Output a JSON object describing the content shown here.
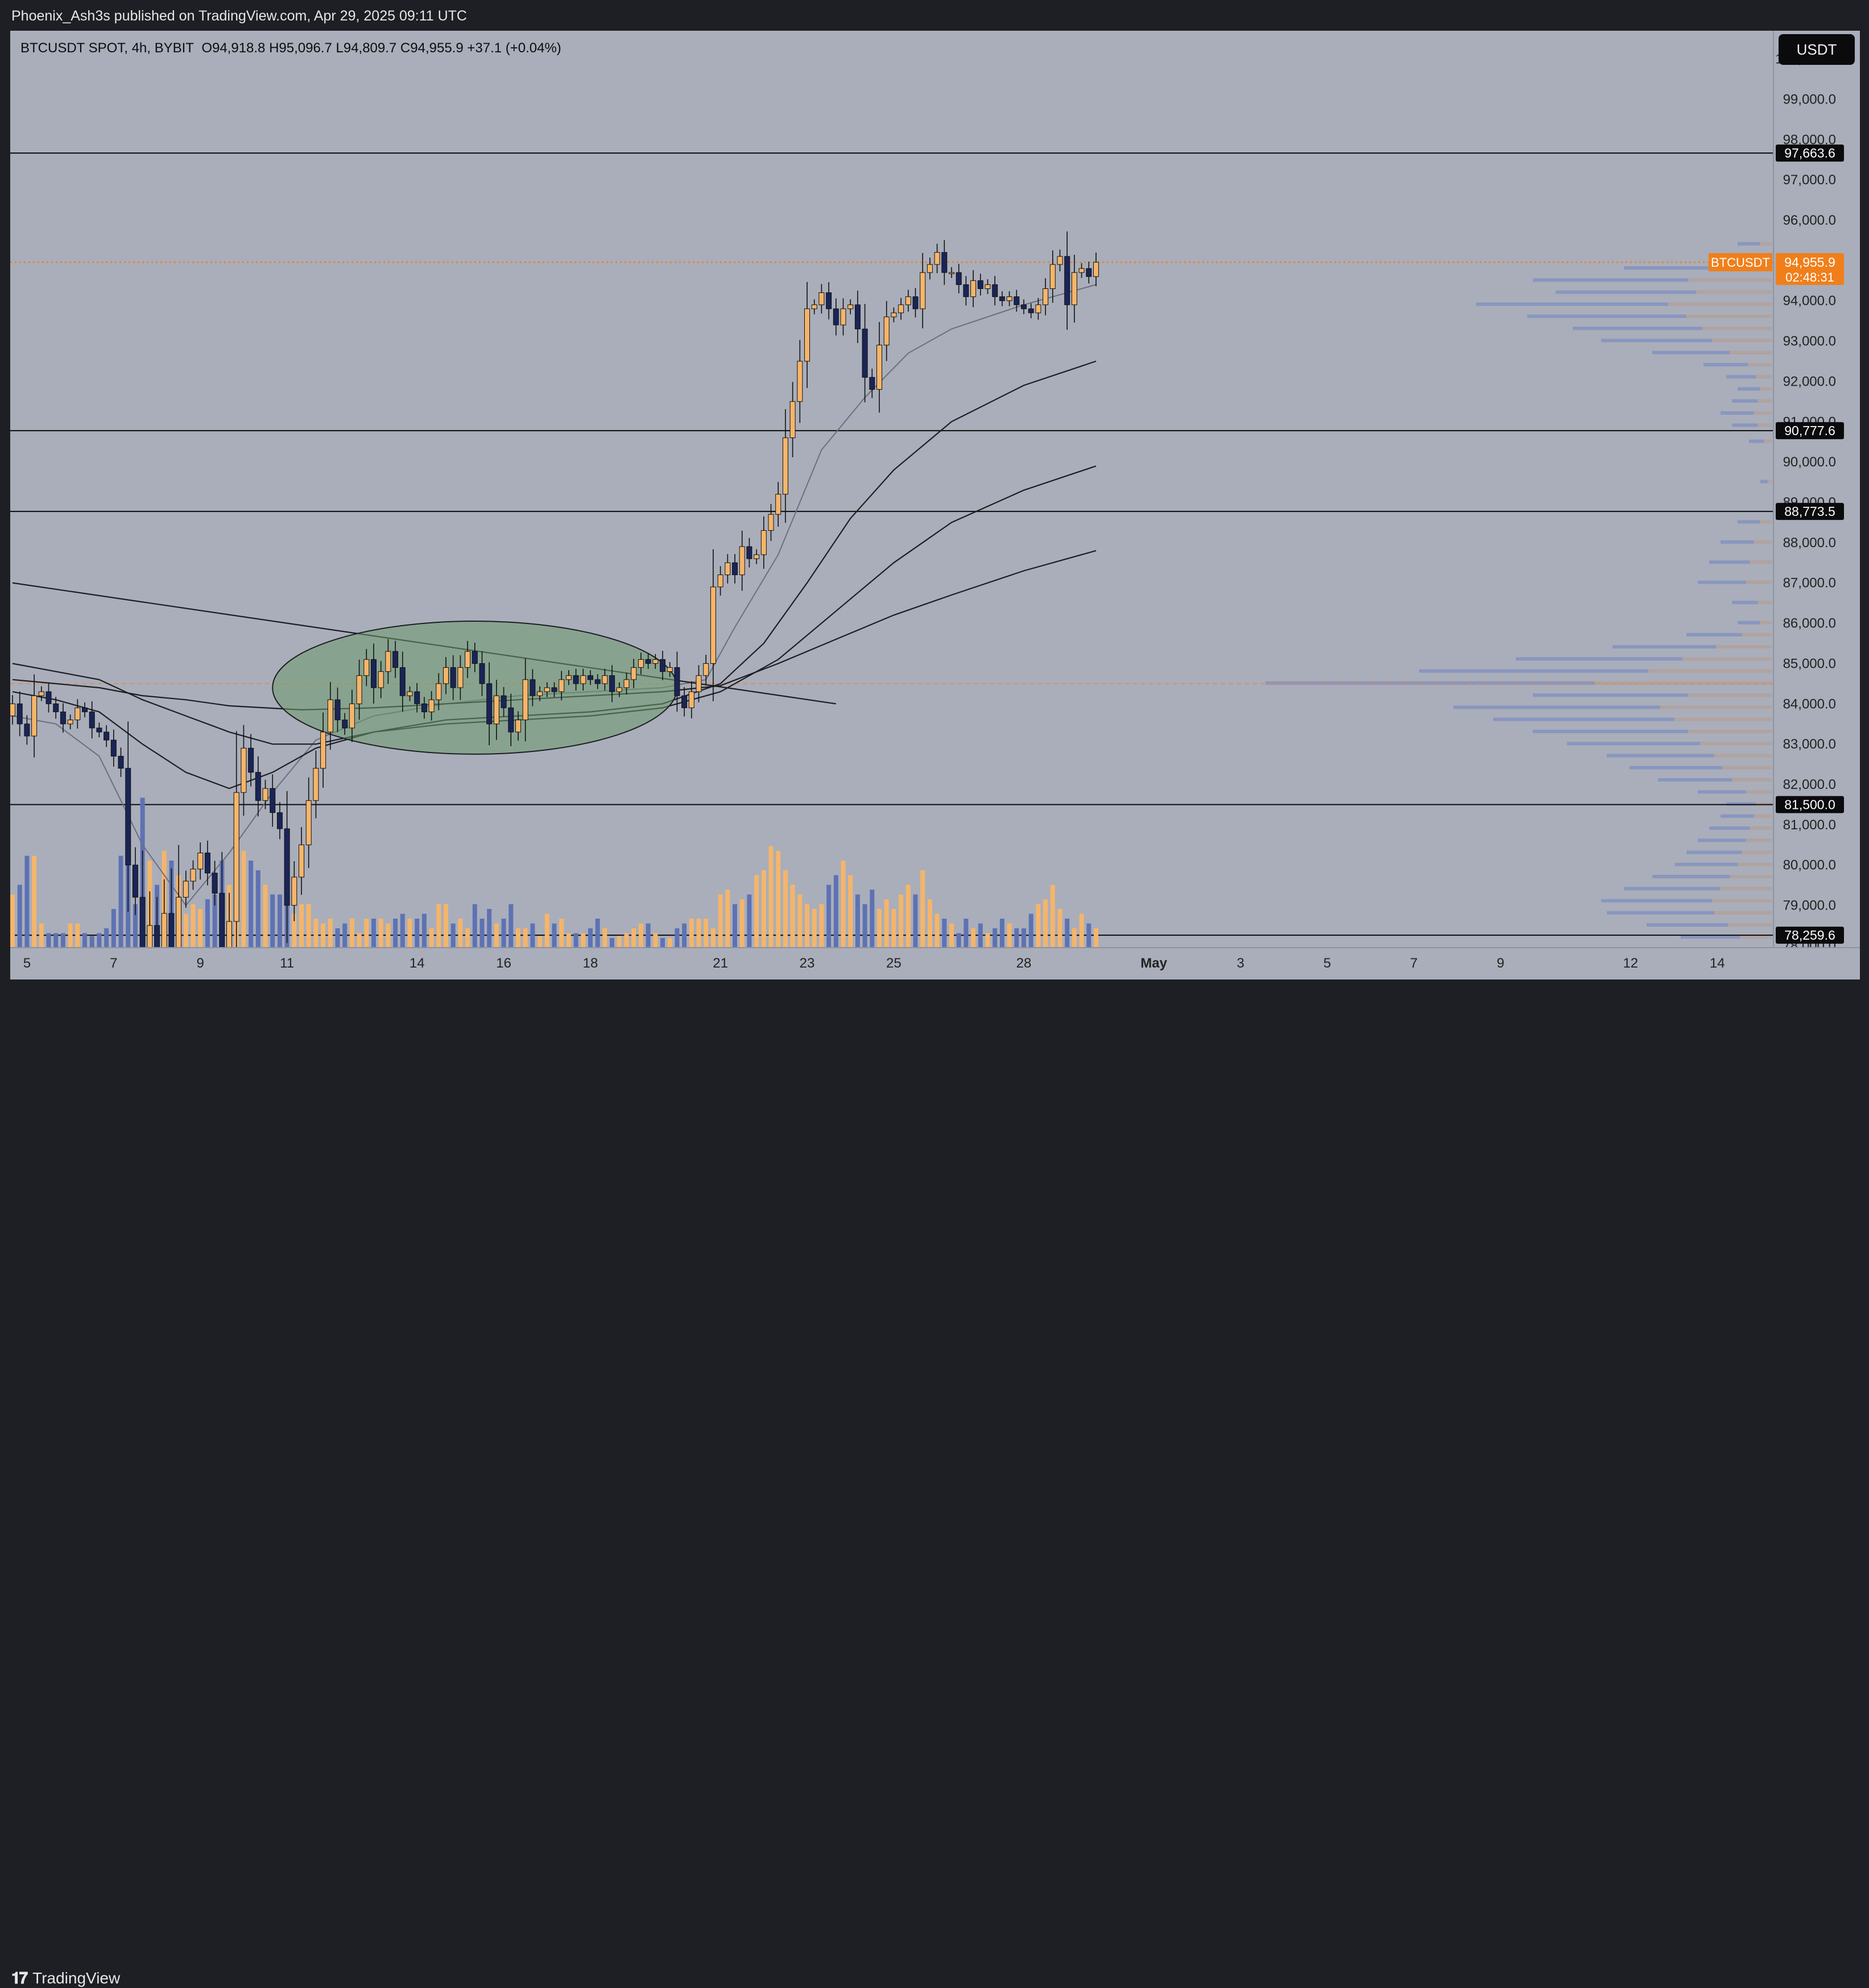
{
  "header": {
    "published": "Phoenix_Ash3s published on TradingView.com, Apr 29, 2025 09:11 UTC"
  },
  "legend": {
    "symbol": "BTCUSDT SPOT, 4h, BYBIT",
    "ohlc": "O94,918.8  H95,096.7  L94,809.7  C94,955.9  +37.1 (+0.04%)"
  },
  "currency_button": "USDT",
  "footer": {
    "brand": "TradingView",
    "logo": "TV logo"
  },
  "colors": {
    "background": "#a9aeba",
    "up_candle": "#f5b56a",
    "down_candle": "#1a2456",
    "volume_up": "#f5b56a",
    "volume_down": "#5e72b3",
    "price_line": "#f07f1b",
    "highlight_ellipse": "#6b9b6b"
  },
  "chart_data": {
    "type": "candlestick",
    "symbol": "BTCUSDT",
    "timeframe": "4h",
    "exchange": "BYBIT",
    "last_price": {
      "label": "BTCUSDT",
      "value": "94,955.9",
      "countdown": "02:48:31"
    },
    "ylim": [
      77950,
      100700
    ],
    "y_ticks": [
      78000,
      79000,
      80000,
      81000,
      82000,
      83000,
      84000,
      85000,
      86000,
      87000,
      88000,
      89000,
      90000,
      91000,
      92000,
      93000,
      94000,
      95000,
      96000,
      97000,
      98000,
      99000,
      100000
    ],
    "x_ticks": [
      {
        "label": "5",
        "t": 2
      },
      {
        "label": "7",
        "t": 14
      },
      {
        "label": "9",
        "t": 26
      },
      {
        "label": "11",
        "t": 38
      },
      {
        "label": "14",
        "t": 56
      },
      {
        "label": "16",
        "t": 68
      },
      {
        "label": "18",
        "t": 80
      },
      {
        "label": "21",
        "t": 98
      },
      {
        "label": "23",
        "t": 110
      },
      {
        "label": "25",
        "t": 122
      },
      {
        "label": "28",
        "t": 140
      },
      {
        "label": "May",
        "t": 158
      },
      {
        "label": "3",
        "t": 170
      },
      {
        "label": "5",
        "t": 182
      },
      {
        "label": "7",
        "t": 194
      },
      {
        "label": "9",
        "t": 206
      },
      {
        "label": "12",
        "t": 224
      },
      {
        "label": "14",
        "t": 236
      }
    ],
    "horizontal_levels": [
      97663.6,
      90777.6,
      88773.5,
      81500.0,
      78259.6
    ],
    "horizontal_level_labels": [
      "97,663.6",
      "90,777.6",
      "88,773.5",
      "81,500.0",
      "78,259.6"
    ],
    "dashed_level": 84500,
    "candles_close": [
      84000,
      83500,
      83200,
      84200,
      84300,
      84000,
      83800,
      83500,
      83600,
      83900,
      83800,
      83400,
      83300,
      83100,
      82700,
      82400,
      80000,
      79200,
      76800,
      78500,
      77100,
      78800,
      76500,
      79200,
      79600,
      79900,
      80300,
      79800,
      79300,
      77200,
      78600,
      81800,
      82900,
      82300,
      81600,
      81900,
      81300,
      80900,
      79000,
      79700,
      80500,
      81600,
      82400,
      83300,
      84100,
      83600,
      83400,
      84000,
      84700,
      85100,
      84400,
      84800,
      85300,
      84900,
      84200,
      84300,
      84000,
      83800,
      84100,
      84500,
      84900,
      84400,
      84900,
      85300,
      85000,
      84500,
      83500,
      84200,
      83900,
      83300,
      83600,
      84600,
      84200,
      84300,
      84400,
      84300,
      84600,
      84700,
      84500,
      84700,
      84600,
      84500,
      84700,
      84300,
      84400,
      84600,
      84900,
      85100,
      85000,
      85100,
      84800,
      84900,
      84200,
      83900,
      84300,
      84700,
      85000,
      86900,
      87200,
      87500,
      87200,
      87900,
      87600,
      87700,
      88300,
      88700,
      89200,
      90600,
      91500,
      92500,
      93800,
      93900,
      94200,
      93800,
      93400,
      93800,
      93900,
      93300,
      92100,
      91800,
      92900,
      93600,
      93700,
      93900,
      94100,
      93800,
      94700,
      94900,
      95200,
      94700,
      94700,
      94400,
      94100,
      94500,
      94300,
      94400,
      94100,
      94000,
      94100,
      93900,
      93800,
      93700,
      93900,
      94300,
      94900,
      95100,
      93900,
      94700,
      94800,
      94600,
      94955.9
    ],
    "volume_relative": [
      0.55,
      0.65,
      0.95,
      0.95,
      0.25,
      0.15,
      0.15,
      0.15,
      0.25,
      0.25,
      0.15,
      0.12,
      0.15,
      0.2,
      0.4,
      0.95,
      1.15,
      0.45,
      1.55,
      0.9,
      0.65,
      1.0,
      0.9,
      0.75,
      0.35,
      0.45,
      0.4,
      0.5,
      0.55,
      0.9,
      0.65,
      1.0,
      1.0,
      0.9,
      0.8,
      0.65,
      0.55,
      0.55,
      0.9,
      0.35,
      0.45,
      0.45,
      0.3,
      0.25,
      0.3,
      0.2,
      0.25,
      0.3,
      0.15,
      0.3,
      0.3,
      0.3,
      0.25,
      0.3,
      0.35,
      0.3,
      0.3,
      0.35,
      0.2,
      0.45,
      0.45,
      0.25,
      0.3,
      0.2,
      0.45,
      0.3,
      0.4,
      0.25,
      0.3,
      0.45,
      0.2,
      0.2,
      0.25,
      0.12,
      0.35,
      0.25,
      0.3,
      0.15,
      0.15,
      0.15,
      0.2,
      0.3,
      0.2,
      0.1,
      0.12,
      0.15,
      0.2,
      0.25,
      0.25,
      0.15,
      0.1,
      0.1,
      0.2,
      0.25,
      0.3,
      0.3,
      0.3,
      0.2,
      0.55,
      0.6,
      0.45,
      0.5,
      0.55,
      0.75,
      0.8,
      1.05,
      1.0,
      0.8,
      0.65,
      0.55,
      0.45,
      0.4,
      0.45,
      0.65,
      0.75,
      0.9,
      0.75,
      0.55,
      0.45,
      0.6,
      0.4,
      0.5,
      0.4,
      0.55,
      0.65,
      0.55,
      0.8,
      0.5,
      0.35,
      0.3,
      0.25,
      0.15,
      0.3,
      0.2,
      0.25,
      0.15,
      0.2,
      0.3,
      0.25,
      0.2,
      0.2,
      0.35,
      0.45,
      0.5,
      0.65,
      0.4,
      0.3,
      0.2,
      0.35,
      0.25,
      0.2
    ],
    "moving_averages": [
      {
        "points": [
          [
            0,
            83700
          ],
          [
            6,
            83500
          ],
          [
            12,
            82700
          ],
          [
            18,
            80500
          ],
          [
            24,
            79000
          ],
          [
            30,
            80300
          ],
          [
            36,
            81800
          ],
          [
            42,
            83100
          ],
          [
            50,
            83700
          ],
          [
            60,
            84000
          ],
          [
            70,
            84200
          ],
          [
            80,
            84300
          ],
          [
            90,
            84400
          ],
          [
            96,
            84600
          ],
          [
            100,
            85900
          ],
          [
            106,
            87700
          ],
          [
            112,
            90300
          ],
          [
            118,
            91600
          ],
          [
            124,
            92700
          ],
          [
            130,
            93300
          ],
          [
            140,
            93900
          ],
          [
            150,
            94400
          ]
        ]
      },
      {
        "points": [
          [
            0,
            84300
          ],
          [
            6,
            84100
          ],
          [
            12,
            83800
          ],
          [
            18,
            83000
          ],
          [
            24,
            82300
          ],
          [
            30,
            81900
          ],
          [
            36,
            82300
          ],
          [
            42,
            82900
          ],
          [
            50,
            83300
          ],
          [
            60,
            83600
          ],
          [
            70,
            83700
          ],
          [
            80,
            83800
          ],
          [
            90,
            84000
          ],
          [
            98,
            84500
          ],
          [
            104,
            85500
          ],
          [
            110,
            87000
          ],
          [
            116,
            88600
          ],
          [
            122,
            89800
          ],
          [
            130,
            91000
          ],
          [
            140,
            91900
          ],
          [
            150,
            92500
          ]
        ]
      },
      {
        "points": [
          [
            0,
            85000
          ],
          [
            6,
            84800
          ],
          [
            12,
            84600
          ],
          [
            18,
            84100
          ],
          [
            24,
            83700
          ],
          [
            30,
            83300
          ],
          [
            36,
            83000
          ],
          [
            42,
            83000
          ],
          [
            50,
            83300
          ],
          [
            60,
            83500
          ],
          [
            70,
            83600
          ],
          [
            80,
            83700
          ],
          [
            90,
            83900
          ],
          [
            98,
            84300
          ],
          [
            106,
            85100
          ],
          [
            114,
            86300
          ],
          [
            122,
            87500
          ],
          [
            130,
            88500
          ],
          [
            140,
            89300
          ],
          [
            150,
            89900
          ]
        ]
      },
      {
        "points": [
          [
            0,
            84600
          ],
          [
            6,
            84500
          ],
          [
            12,
            84400
          ],
          [
            18,
            84200
          ],
          [
            24,
            84100
          ],
          [
            30,
            83950
          ],
          [
            40,
            83850
          ],
          [
            50,
            83900
          ],
          [
            60,
            84000
          ],
          [
            70,
            84100
          ],
          [
            80,
            84200
          ],
          [
            90,
            84300
          ],
          [
            98,
            84450
          ],
          [
            106,
            85000
          ],
          [
            114,
            85600
          ],
          [
            122,
            86200
          ],
          [
            130,
            86700
          ],
          [
            140,
            87300
          ],
          [
            150,
            87800
          ]
        ]
      }
    ],
    "trendline": [
      [
        0,
        87000
      ],
      [
        114,
        84000
      ]
    ],
    "highlight_ellipse": {
      "center_t": 64,
      "center_price": 84400,
      "t_radius": 28,
      "price_radius": 1650
    },
    "volume_profile": "visible range volume profile on the right side",
    "grid": false,
    "legend_position": "top-left"
  }
}
